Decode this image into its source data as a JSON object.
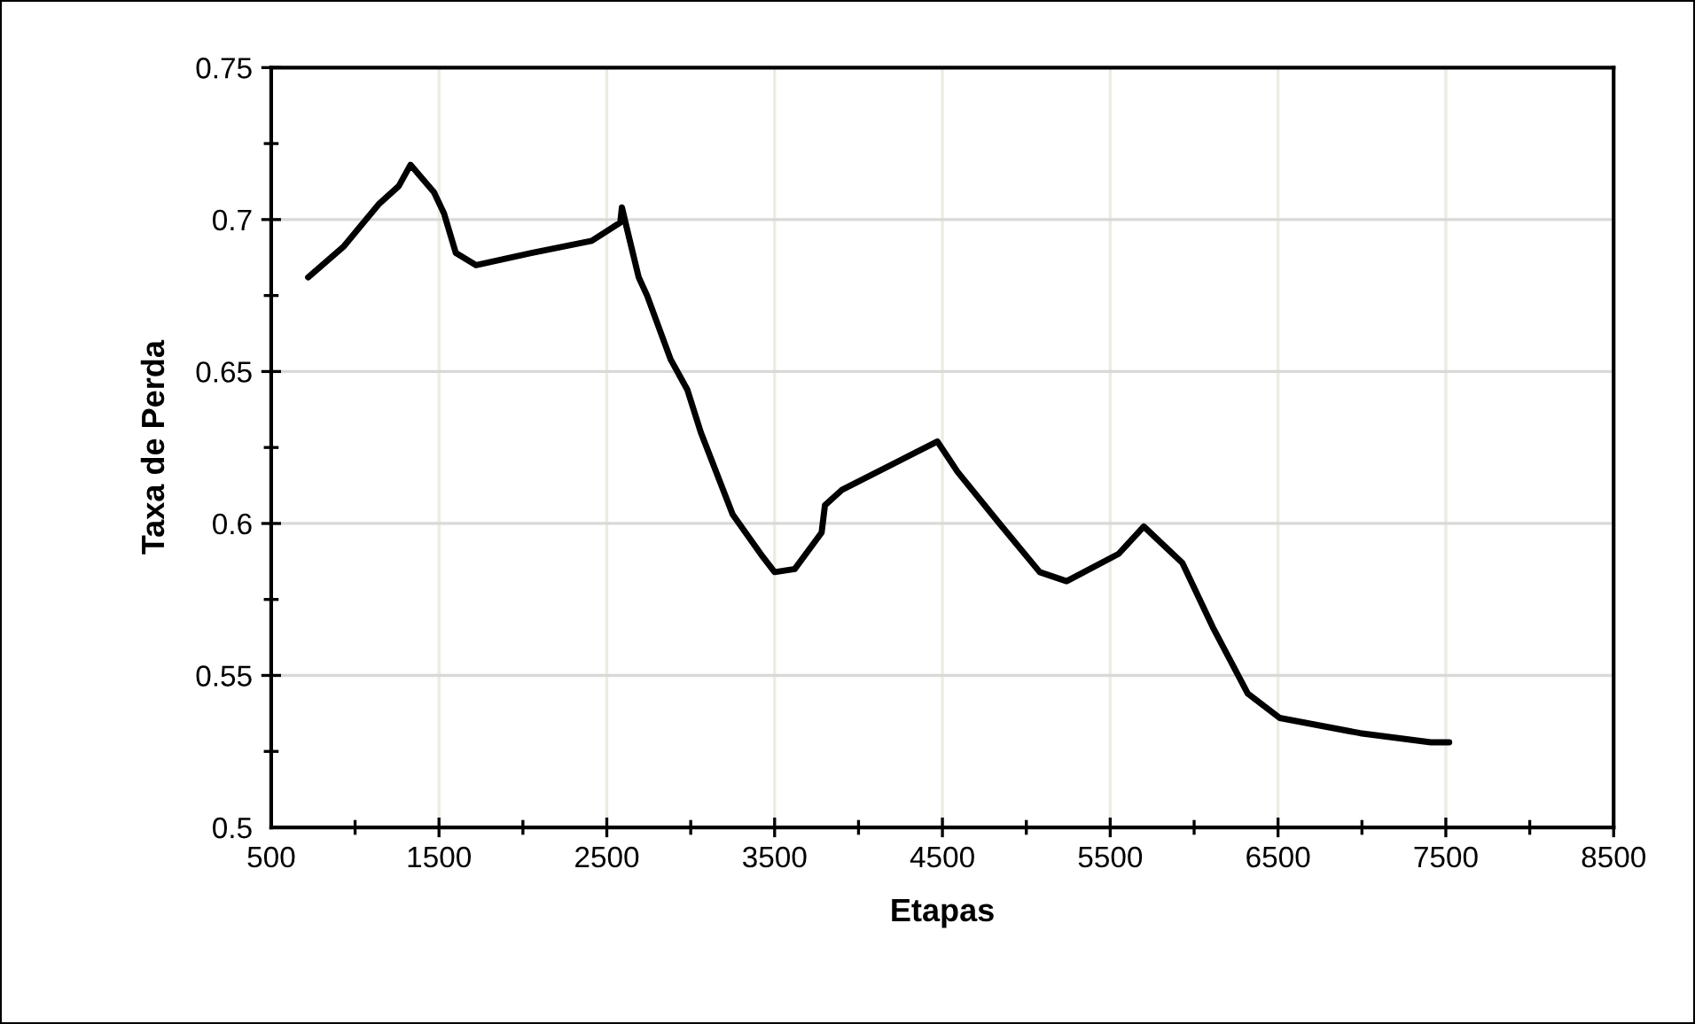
{
  "chart_data": {
    "type": "line",
    "xlabel": "Etapas",
    "ylabel": "Taxa de Perda",
    "xlim": [
      500,
      8500
    ],
    "xticks": [
      500,
      1500,
      2500,
      3500,
      4500,
      5500,
      6500,
      7500,
      8500
    ],
    "ylim": [
      0.5,
      0.75
    ],
    "yticks": [
      0.5,
      0.55,
      0.6,
      0.65,
      0.7,
      0.75
    ],
    "grid": true,
    "marker": "none",
    "line_style": "solid",
    "series": [
      {
        "color": "#000000",
        "x": [
          720,
          930,
          1140,
          1260,
          1330,
          1470,
          1530,
          1600,
          1720,
          2050,
          2410,
          2580,
          2590,
          2620,
          2690,
          2740,
          2880,
          2980,
          3060,
          3250,
          3430,
          3500,
          3620,
          3780,
          3800,
          3900,
          4470,
          4590,
          4840,
          5080,
          5240,
          5550,
          5700,
          5930,
          6110,
          6320,
          6510,
          6990,
          7410,
          7520
        ],
        "values": [
          0.681,
          0.691,
          0.705,
          0.711,
          0.718,
          0.709,
          0.702,
          0.689,
          0.685,
          0.689,
          0.693,
          0.699,
          0.704,
          0.697,
          0.681,
          0.675,
          0.654,
          0.644,
          0.63,
          0.603,
          0.589,
          0.584,
          0.585,
          0.597,
          0.606,
          0.611,
          0.627,
          0.617,
          0.6,
          0.584,
          0.581,
          0.59,
          0.599,
          0.587,
          0.566,
          0.544,
          0.536,
          0.531,
          0.528,
          0.528
        ]
      }
    ]
  }
}
